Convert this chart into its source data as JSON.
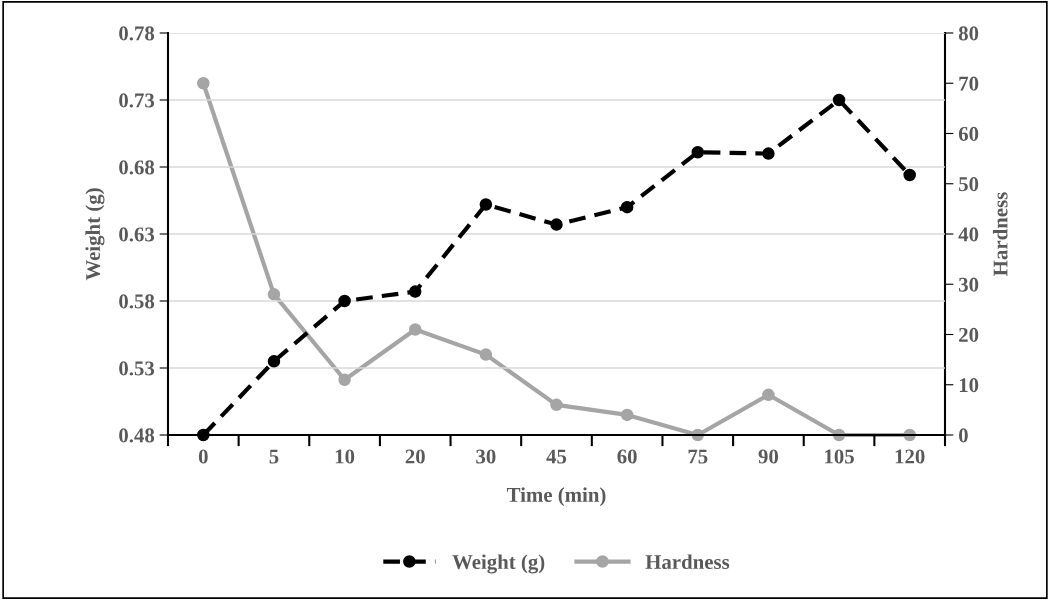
{
  "chart_data": {
    "type": "line",
    "xlabel": "Time (min)",
    "ylabel": "Weight (g)",
    "y2label": "Hardness",
    "categories": [
      "0",
      "5",
      "10",
      "20",
      "30",
      "45",
      "60",
      "75",
      "90",
      "105",
      "120"
    ],
    "series": [
      {
        "name": "Weight (g)",
        "color": "#000000",
        "line_style": "dashed",
        "values": [
          0.48,
          0.535,
          0.58,
          0.587,
          0.652,
          0.637,
          0.65,
          0.691,
          0.69,
          0.73,
          0.674
        ]
      },
      {
        "name": "Hardness",
        "color": "#a5a5a5",
        "line_style": "solid",
        "axis": "y2",
        "values": [
          70,
          28,
          11,
          21,
          16,
          6,
          4,
          0,
          8,
          0,
          0
        ]
      }
    ],
    "ylim": [
      0.48,
      0.78
    ],
    "yticks": [
      {
        "value": 0.48,
        "label": "0.48"
      },
      {
        "value": 0.53,
        "label": "0.53"
      },
      {
        "value": 0.58,
        "label": "0.58"
      },
      {
        "value": 0.63,
        "label": "0.63"
      },
      {
        "value": 0.68,
        "label": "0.68"
      },
      {
        "value": 0.73,
        "label": "0.73"
      },
      {
        "value": 0.78,
        "label": "0.78"
      }
    ],
    "y2lim": [
      0,
      80
    ],
    "y2ticks": [
      0,
      10,
      20,
      30,
      40,
      50,
      60,
      70,
      80
    ],
    "grid": "y",
    "legend": "bottom",
    "marker": "circle"
  }
}
